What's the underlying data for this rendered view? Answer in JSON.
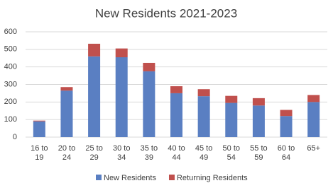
{
  "chart_data": {
    "type": "stacked_bar",
    "title": "New Residents 2021-2023",
    "categories": [
      "16 to 19",
      "20 to 24",
      "25 to 29",
      "30 to 34",
      "35 to 39",
      "40 to 44",
      "45 to 49",
      "50 to 54",
      "55 to 59",
      "60 to 64",
      "65+"
    ],
    "series": [
      {
        "name": "New Residents",
        "color": "#5a7fc2",
        "values": [
          90,
          265,
          460,
          455,
          375,
          250,
          233,
          195,
          180,
          120,
          200
        ]
      },
      {
        "name": "Returning Residents",
        "color": "#c0504d",
        "values": [
          4,
          20,
          72,
          50,
          48,
          40,
          40,
          40,
          42,
          35,
          40
        ]
      }
    ],
    "ylim": [
      0,
      600
    ],
    "yticks": [
      0,
      100,
      200,
      300,
      400,
      500,
      600
    ],
    "grid": true,
    "legend": "bottom"
  }
}
